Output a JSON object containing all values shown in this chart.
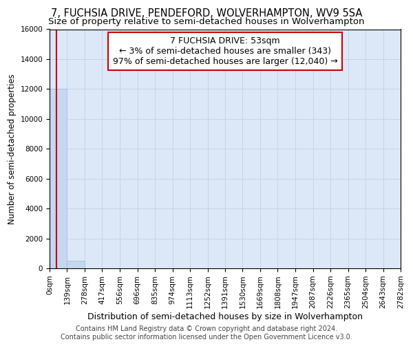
{
  "title1": "7, FUCHSIA DRIVE, PENDEFORD, WOLVERHAMPTON, WV9 5SA",
  "title2": "Size of property relative to semi-detached houses in Wolverhampton",
  "xlabel": "Distribution of semi-detached houses by size in Wolverhampton",
  "ylabel": "Number of semi-detached properties",
  "bin_edges": [
    0,
    139,
    278,
    417,
    556,
    696,
    835,
    974,
    1113,
    1252,
    1391,
    1530,
    1669,
    1808,
    1947,
    2087,
    2226,
    2365,
    2504,
    2643,
    2782
  ],
  "bin_counts": [
    12000,
    500,
    0,
    0,
    0,
    0,
    0,
    0,
    0,
    0,
    0,
    0,
    0,
    0,
    0,
    0,
    0,
    0,
    0,
    0
  ],
  "bar_color": "#c5d8f0",
  "bar_edge_color": "#a0b8d8",
  "property_size": 53,
  "annotation_title": "7 FUCHSIA DRIVE: 53sqm",
  "annotation_line1": "← 3% of semi-detached houses are smaller (343)",
  "annotation_line2": "97% of semi-detached houses are larger (12,040) →",
  "annotation_box_color": "#ffffff",
  "annotation_box_edge_color": "#cc0000",
  "vline_color": "#cc0000",
  "ylim": [
    0,
    16000
  ],
  "yticks": [
    0,
    2000,
    4000,
    6000,
    8000,
    10000,
    12000,
    14000,
    16000
  ],
  "grid_color": "#c8d4e4",
  "background_color": "#dce8f8",
  "footer1": "Contains HM Land Registry data © Crown copyright and database right 2024.",
  "footer2": "Contains public sector information licensed under the Open Government Licence v3.0.",
  "title1_fontsize": 10.5,
  "title2_fontsize": 9.5,
  "xlabel_fontsize": 9,
  "ylabel_fontsize": 8.5,
  "tick_fontsize": 7.5,
  "annotation_fontsize": 9,
  "footer_fontsize": 7
}
